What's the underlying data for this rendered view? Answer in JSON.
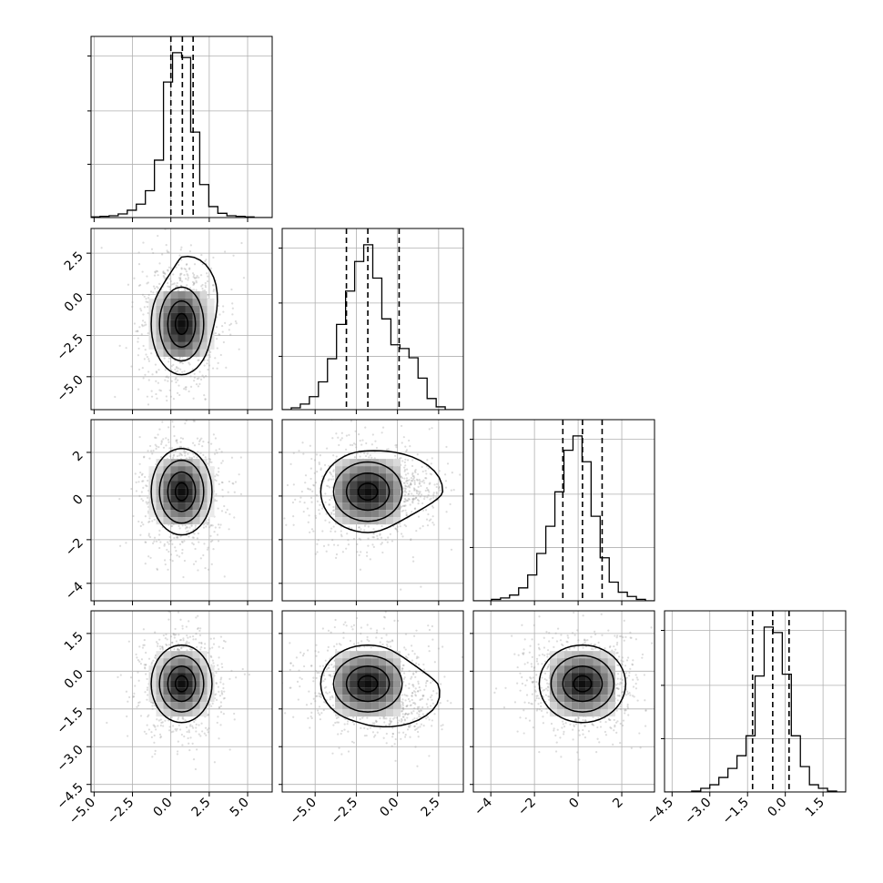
{
  "chart_data": {
    "type": "corner",
    "parameters": [
      {
        "range": [
          -5.2,
          6.6
        ],
        "ticks": [
          -5.0,
          -2.5,
          0.0,
          2.5,
          5.0
        ],
        "tick_labels": [
          "−5.0",
          "−2.5",
          "0.0",
          "2.5",
          "5.0"
        ],
        "quantiles": [
          0.0,
          0.75,
          1.45
        ],
        "hist": {
          "edges_start": -5.2,
          "bin_width": 0.59,
          "counts": [
            1,
            2,
            3,
            6,
            12,
            22,
            44,
            94,
            222,
            270,
            262,
            140,
            54,
            18,
            7,
            3,
            2,
            1,
            0,
            0
          ]
        }
      },
      {
        "range": [
          -7.0,
          4.0
        ],
        "ticks": [
          -5.0,
          -2.5,
          0.0,
          2.5
        ],
        "tick_labels": [
          "−5.0",
          "−2.5",
          "0.0",
          "2.5"
        ],
        "quantiles": [
          -3.1,
          -1.8,
          0.1
        ],
        "hist": {
          "edges_start": -7.0,
          "bin_width": 0.55,
          "counts": [
            0,
            2,
            6,
            14,
            30,
            55,
            92,
            128,
            160,
            178,
            142,
            98,
            70,
            66,
            56,
            34,
            12,
            3,
            0,
            0
          ]
        }
      },
      {
        "range": [
          -4.8,
          3.5
        ],
        "ticks": [
          -4,
          -2,
          0,
          2
        ],
        "tick_labels": [
          "−4",
          "−2",
          "0",
          "2"
        ],
        "quantiles": [
          -0.7,
          0.2,
          1.1
        ],
        "hist": {
          "edges_start": -4.8,
          "bin_width": 0.415,
          "counts": [
            0,
            0,
            2,
            4,
            8,
            18,
            36,
            66,
            104,
            152,
            210,
            230,
            194,
            118,
            60,
            26,
            12,
            6,
            2,
            0
          ]
        }
      },
      {
        "range": [
          -4.8,
          2.4
        ],
        "ticks": [
          -4.5,
          -3.0,
          -1.5,
          0.0,
          1.5
        ],
        "tick_labels": [
          "−4.5",
          "−3.0",
          "−1.5",
          "0.0",
          "1.5"
        ],
        "quantiles": [
          -1.3,
          -0.5,
          0.15
        ],
        "hist": {
          "edges_start": -4.8,
          "bin_width": 0.36,
          "counts": [
            0,
            0,
            0,
            1,
            4,
            8,
            16,
            26,
            40,
            62,
            128,
            182,
            176,
            130,
            62,
            28,
            8,
            4,
            1,
            0
          ]
        }
      }
    ],
    "pairs": [
      {
        "row": 1,
        "col": 0,
        "mean": [
          0.7,
          -1.8
        ],
        "sd": [
          0.9,
          1.4
        ],
        "extra": {
          "x": 0.3,
          "y": 0.8
        }
      },
      {
        "row": 2,
        "col": 0,
        "mean": [
          0.7,
          0.2
        ],
        "sd": [
          0.9,
          0.9
        ]
      },
      {
        "row": 2,
        "col": 1,
        "mean": [
          -1.8,
          0.2
        ],
        "sd": [
          1.3,
          0.85
        ],
        "extra": {
          "x": 1.6,
          "y": 0.1
        }
      },
      {
        "row": 3,
        "col": 0,
        "mean": [
          0.7,
          -0.5
        ],
        "sd": [
          0.9,
          0.7
        ]
      },
      {
        "row": 3,
        "col": 1,
        "mean": [
          -1.8,
          -0.5
        ],
        "sd": [
          1.3,
          0.7
        ],
        "extra": {
          "x": 1.5,
          "y": -0.7
        }
      },
      {
        "row": 3,
        "col": 2,
        "mean": [
          0.2,
          -0.5
        ],
        "sd": [
          0.9,
          0.7
        ]
      }
    ],
    "grid": true,
    "axis_labels": [
      "",
      "",
      "",
      ""
    ],
    "colors": {
      "hist": "#000000",
      "contour": "#000000",
      "points": "#9a9a9a",
      "grid": "#b0b0b0"
    }
  }
}
